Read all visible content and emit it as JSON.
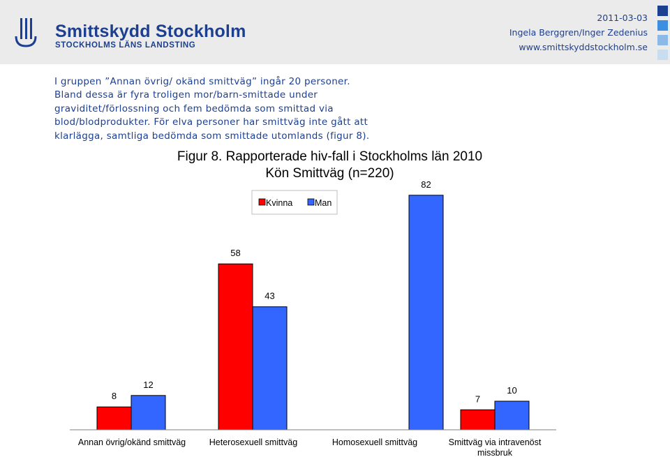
{
  "header": {
    "org_name": "Smittskydd Stockholm",
    "org_sub": "STOCKHOLMS LÄNS LANDSTING",
    "date": "2011-03-03",
    "authors": "Ingela Berggren/Inger Zedenius",
    "url": "www.smittskyddstockholm.se"
  },
  "intro": {
    "paragraph1": "I gruppen ”Annan övrig/ okänd smittväg” ingår 20 personer.\nBland dessa är fyra troligen mor/barn-smittade under\ngraviditet/förlossning och fem bedömda som smittad via\nblod/blodprodukter.",
    "paragraph2": "För elva personer har smittväg inte gått att\nklarlägga, samtliga bedömda som smittade utomlands (figur 8)."
  },
  "chart_data": {
    "type": "bar",
    "title": "Figur 8. Rapporterade hiv-fall i Stockholms län 2010",
    "subtitle": "Kön Smittväg (n=220)",
    "categories": [
      "Annan övrig/okänd smittväg",
      "Heterosexuell smittväg",
      "Homosexuell smittväg",
      "Smittväg via intravenöst missbruk"
    ],
    "series": [
      {
        "name": "Kvinna",
        "color": "#ff0000",
        "values": [
          8,
          58,
          null,
          7
        ]
      },
      {
        "name": "Man",
        "color": "#3366ff",
        "values": [
          12,
          43,
          82,
          10
        ]
      }
    ],
    "ylim": [
      0,
      90
    ],
    "legend_position": "top-left",
    "grid": false
  }
}
